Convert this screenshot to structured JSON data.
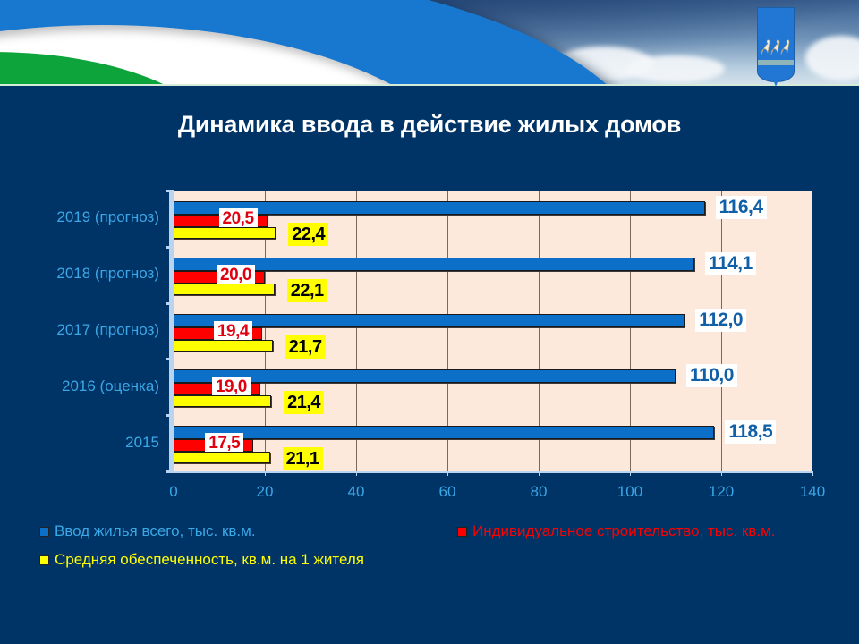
{
  "header": {
    "crest_alt": "swans-crest"
  },
  "title": "Динамика ввода в действие жилых домов",
  "colors": {
    "background": "#003366",
    "plot_bg": "#fde9db",
    "series_total": "#0c6fc8",
    "series_individual": "#ff0000",
    "series_avg": "#ffff00",
    "axis_text": "#3aa8e6"
  },
  "chart_data": {
    "type": "bar",
    "orientation": "horizontal",
    "title": "Динамика ввода в действие жилых домов",
    "categories": [
      "2019 (прогноз)",
      "2018 (прогноз)",
      "2017 (прогноз)",
      "2016 (оценка)",
      "2015"
    ],
    "series": [
      {
        "name": "Ввод жилья всего, тыс. кв.м.",
        "color": "#0c6fc8",
        "values": [
          116.4,
          114.1,
          112.0,
          110.0,
          118.5
        ],
        "labels": [
          "116,4",
          "114,1",
          "112,0",
          "110,0",
          "118,5"
        ]
      },
      {
        "name": "Индивидуальное строительство, тыс. кв.м.",
        "color": "#ff0000",
        "values": [
          20.5,
          20.0,
          19.4,
          19.0,
          17.5
        ],
        "labels": [
          "20,5",
          "20,0",
          "19,4",
          "19,0",
          "17,5"
        ]
      },
      {
        "name": "Средняя обеспеченность, кв.м. на 1 жителя",
        "color": "#ffff00",
        "values": [
          22.4,
          22.1,
          21.7,
          21.4,
          21.1
        ],
        "labels": [
          "22,4",
          "22,1",
          "21,7",
          "21,4",
          "21,1"
        ]
      }
    ],
    "xlabel": "",
    "ylabel": "",
    "xlim": [
      0,
      140
    ],
    "xticks": [
      "0",
      "20",
      "40",
      "60",
      "80",
      "100",
      "120",
      "140"
    ],
    "grid": true,
    "legend_position": "bottom"
  },
  "legend": [
    {
      "label": "Ввод жилья всего, тыс. кв.м.",
      "color": "#0c6fc8",
      "text_color": "#3aa8e6"
    },
    {
      "label": "Индивидуальное строительство, тыс. кв.м.",
      "color": "#ff0000",
      "text_color": "#ff0000"
    },
    {
      "label": "Средняя обеспеченность, кв.м. на 1 жителя",
      "color": "#ffff00",
      "text_color": "#ffff00"
    }
  ]
}
